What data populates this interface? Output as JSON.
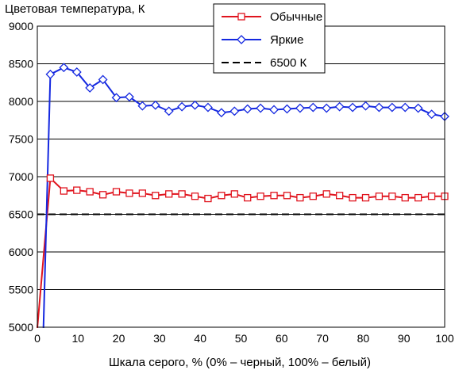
{
  "chart_data": {
    "type": "line",
    "title": "Цветовая температура, К",
    "xlabel": "Шкала серого, % (0% – черный, 100% – белый)",
    "ylabel": "",
    "xlim": [
      0,
      100
    ],
    "ylim": [
      5000,
      9000
    ],
    "xticks": [
      0,
      10,
      20,
      30,
      40,
      50,
      60,
      70,
      80,
      90,
      100
    ],
    "yticks": [
      5000,
      5500,
      6000,
      6500,
      7000,
      7500,
      8000,
      8500,
      9000
    ],
    "grid": "horizontal",
    "legend_position": "top-right",
    "series": [
      {
        "name": "Обычные",
        "color": "#e0141e",
        "marker": "square",
        "x": [
          0,
          3.2,
          6.5,
          9.7,
          12.9,
          16.1,
          19.4,
          22.6,
          25.8,
          29.0,
          32.3,
          35.5,
          38.7,
          41.9,
          45.2,
          48.4,
          51.6,
          54.8,
          58.1,
          61.3,
          64.5,
          67.7,
          71.0,
          74.2,
          77.4,
          80.6,
          83.9,
          87.1,
          90.3,
          93.5,
          96.8,
          100
        ],
        "y": [
          4990,
          6980,
          6810,
          6820,
          6800,
          6760,
          6800,
          6780,
          6780,
          6750,
          6770,
          6770,
          6740,
          6710,
          6750,
          6770,
          6720,
          6740,
          6750,
          6750,
          6720,
          6740,
          6770,
          6750,
          6720,
          6720,
          6740,
          6740,
          6720,
          6720,
          6740,
          6740
        ]
      },
      {
        "name": "Яркие",
        "color": "#1428e0",
        "marker": "diamond",
        "x": [
          1.5,
          3.2,
          6.5,
          9.7,
          12.9,
          16.1,
          19.4,
          22.6,
          25.8,
          29.0,
          32.3,
          35.5,
          38.7,
          41.9,
          45.2,
          48.4,
          51.6,
          54.8,
          58.1,
          61.3,
          64.5,
          67.7,
          71.0,
          74.2,
          77.4,
          80.6,
          83.9,
          87.1,
          90.3,
          93.5,
          96.8,
          100
        ],
        "y": [
          4990,
          8360,
          8450,
          8390,
          8180,
          8290,
          8050,
          8060,
          7940,
          7950,
          7870,
          7930,
          7950,
          7920,
          7850,
          7870,
          7900,
          7910,
          7890,
          7900,
          7910,
          7920,
          7910,
          7930,
          7920,
          7940,
          7920,
          7920,
          7920,
          7910,
          7830,
          7800
        ]
      },
      {
        "name": "6500 К",
        "color": "#000000",
        "line_style": "dashed",
        "x": [
          0,
          100
        ],
        "y": [
          6500,
          6500
        ]
      }
    ]
  }
}
